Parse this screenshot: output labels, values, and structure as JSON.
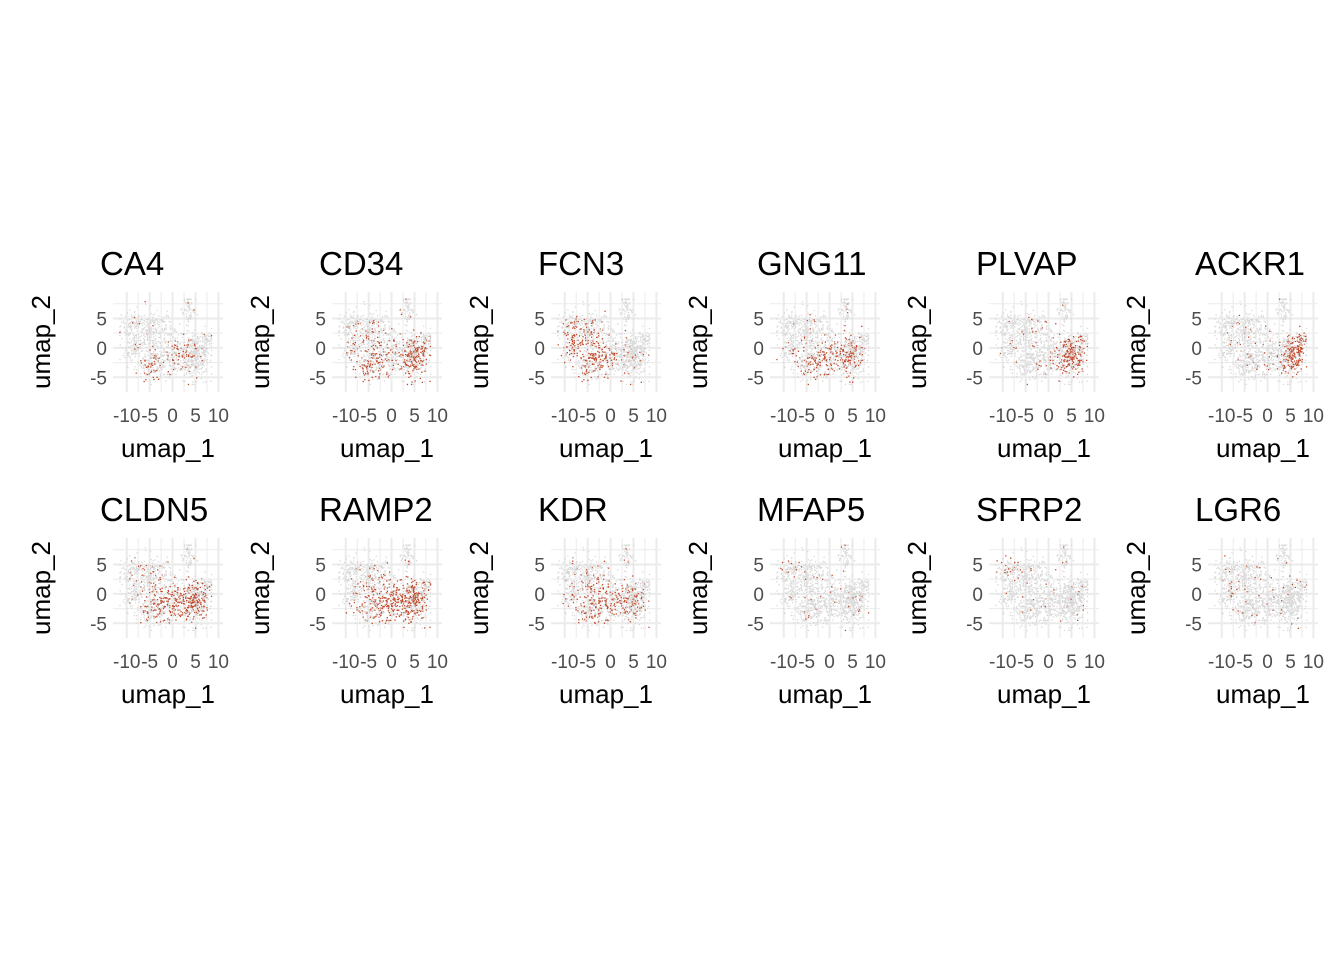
{
  "colors": {
    "background": "#ffffff",
    "grid": "#ebebeb",
    "low": "#d9d9d9",
    "high": "#c0492a",
    "tick_text": "#4d4d4d",
    "title_text": "#000000"
  },
  "chart_data": {
    "type": "scatter",
    "layout": "faceted 2 rows x 6 columns",
    "x_label": "umap_1",
    "y_label": "umap_2",
    "xlim": [
      -13,
      11
    ],
    "ylim": [
      -7.5,
      9.5
    ],
    "x_ticks": [
      {
        "value": -10,
        "label": "-10"
      },
      {
        "value": -5,
        "label": "-5"
      },
      {
        "value": 0,
        "label": "0"
      },
      {
        "value": 5,
        "label": "5"
      },
      {
        "value": 10,
        "label": "10"
      }
    ],
    "y_ticks": [
      {
        "value": 5,
        "label": "5"
      },
      {
        "value": 0,
        "label": "0"
      },
      {
        "value": -5,
        "label": "-5"
      }
    ],
    "panels": [
      {
        "gene": "CA4",
        "expression_focus": [
          [
            -5,
            -3.5,
            1.6
          ],
          [
            2,
            -1,
            1.8
          ]
        ],
        "expressed_fraction": 0.32
      },
      {
        "gene": "CD34",
        "expression_focus": [
          [
            5,
            -2,
            3.0
          ],
          [
            -5,
            -2,
            3.0
          ]
        ],
        "expressed_fraction": 0.52
      },
      {
        "gene": "FCN3",
        "expression_focus": [
          [
            -3,
            -2,
            3.0
          ],
          [
            -8,
            1,
            2.5
          ]
        ],
        "expressed_fraction": 0.5
      },
      {
        "gene": "GNG11",
        "expression_focus": [
          [
            -3,
            -3,
            3.0
          ],
          [
            3,
            -1,
            3.0
          ]
        ],
        "expressed_fraction": 0.36
      },
      {
        "gene": "PLVAP",
        "expression_focus": [
          [
            5,
            -2,
            2.5
          ]
        ],
        "expressed_fraction": 0.6
      },
      {
        "gene": "ACKR1",
        "expression_focus": [
          [
            6,
            -3,
            2.0
          ],
          [
            7,
            1,
            1.6
          ]
        ],
        "expressed_fraction": 0.62
      },
      {
        "gene": "CLDN5",
        "expression_focus": [
          [
            -2,
            -2,
            3.5
          ],
          [
            4,
            -2,
            3.0
          ]
        ],
        "expressed_fraction": 0.44
      },
      {
        "gene": "RAMP2",
        "expression_focus": [
          [
            -2,
            -2,
            3.5
          ],
          [
            4,
            -1,
            3.0
          ]
        ],
        "expressed_fraction": 0.55
      },
      {
        "gene": "KDR",
        "expression_focus": [
          [
            -5,
            -2,
            3.0
          ],
          [
            2,
            -2,
            3.0
          ]
        ],
        "expressed_fraction": 0.45
      },
      {
        "gene": "MFAP5",
        "expression_focus": [
          [
            -10,
            5,
            1.3
          ]
        ],
        "expressed_fraction": 0.14
      },
      {
        "gene": "SFRP2",
        "expression_focus": [
          [
            -10,
            5.5,
            1.5
          ]
        ],
        "expressed_fraction": 0.42
      },
      {
        "gene": "LGR6",
        "expression_focus": [
          [
            -8,
            0.5,
            1.0
          ]
        ],
        "expressed_fraction": 0.2
      }
    ]
  }
}
